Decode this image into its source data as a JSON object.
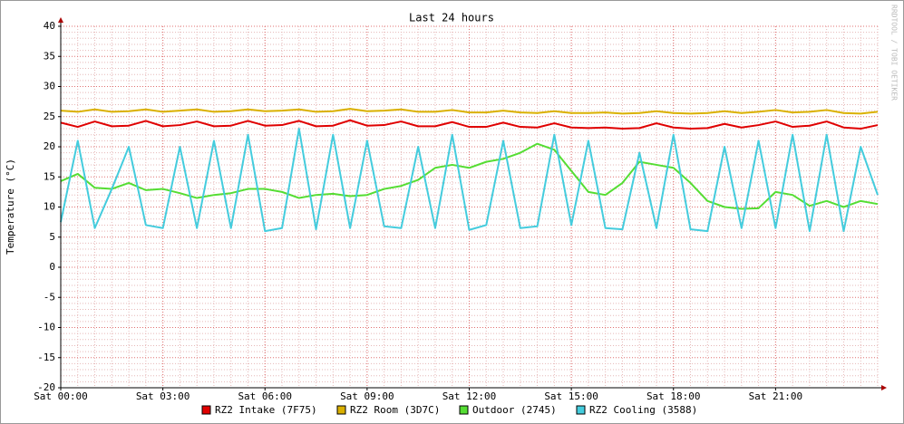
{
  "chart_data": {
    "type": "line",
    "title": "Last 24 hours",
    "ylabel": "Temperature (°C)",
    "watermark": "RRDTOOL / TOBI OETIKER",
    "x": [
      0,
      0.5,
      1,
      1.5,
      2,
      2.5,
      3,
      3.5,
      4,
      4.5,
      5,
      5.5,
      6,
      6.5,
      7,
      7.5,
      8,
      8.5,
      9,
      9.5,
      10,
      10.5,
      11,
      11.5,
      12,
      12.5,
      13,
      13.5,
      14,
      14.5,
      15,
      15.5,
      16,
      16.5,
      17,
      17.5,
      18,
      18.5,
      19,
      19.5,
      20,
      20.5,
      21,
      21.5,
      22,
      22.5,
      23,
      23.5,
      24
    ],
    "xlim": [
      0,
      24
    ],
    "xticks": [
      {
        "value": 0,
        "label": "Sat 00:00"
      },
      {
        "value": 3,
        "label": "Sat 03:00"
      },
      {
        "value": 6,
        "label": "Sat 06:00"
      },
      {
        "value": 9,
        "label": "Sat 09:00"
      },
      {
        "value": 12,
        "label": "Sat 12:00"
      },
      {
        "value": 15,
        "label": "Sat 15:00"
      },
      {
        "value": 18,
        "label": "Sat 18:00"
      },
      {
        "value": 21,
        "label": "Sat 21:00"
      }
    ],
    "ylim": [
      -20,
      40
    ],
    "yticks": [
      -20,
      -15,
      -10,
      -5,
      0,
      5,
      10,
      15,
      20,
      25,
      30,
      35,
      40
    ],
    "grid": true,
    "series": [
      {
        "name": "RZ2 Intake (7F75)",
        "color": "#e00000",
        "values": [
          24,
          23.3,
          24.2,
          23.4,
          23.5,
          24.3,
          23.4,
          23.6,
          24.2,
          23.4,
          23.5,
          24.3,
          23.5,
          23.6,
          24.3,
          23.4,
          23.5,
          24.4,
          23.5,
          23.6,
          24.2,
          23.4,
          23.4,
          24.1,
          23.3,
          23.3,
          24,
          23.3,
          23.2,
          23.9,
          23.2,
          23.1,
          23.2,
          23,
          23.1,
          23.9,
          23.2,
          23,
          23.1,
          23.8,
          23.2,
          23.6,
          24.2,
          23.3,
          23.5,
          24.2,
          23.2,
          23,
          23.6
        ]
      },
      {
        "name": "RZ2 Room (3D7C)",
        "color": "#dab000",
        "values": [
          26,
          25.8,
          26.2,
          25.8,
          25.9,
          26.2,
          25.8,
          26,
          26.2,
          25.8,
          25.9,
          26.2,
          25.9,
          26,
          26.2,
          25.8,
          25.9,
          26.3,
          25.9,
          26,
          26.2,
          25.8,
          25.8,
          26.1,
          25.7,
          25.7,
          26,
          25.7,
          25.6,
          25.9,
          25.6,
          25.6,
          25.7,
          25.5,
          25.6,
          25.9,
          25.6,
          25.5,
          25.6,
          25.9,
          25.6,
          25.8,
          26.1,
          25.7,
          25.8,
          26.1,
          25.6,
          25.5,
          25.8
        ]
      },
      {
        "name": "Outdoor (2745)",
        "color": "#55dd33",
        "values": [
          14.3,
          15.5,
          13.2,
          13,
          14,
          12.8,
          13,
          12.3,
          11.5,
          12,
          12.3,
          13,
          13,
          12.5,
          11.5,
          12,
          12.2,
          11.8,
          12,
          13,
          13.5,
          14.5,
          16.5,
          17,
          16.5,
          17.5,
          18,
          19,
          20.5,
          19.5,
          16,
          12.5,
          12,
          14,
          17.5,
          17,
          16.5,
          14,
          11,
          10,
          9.7,
          9.8,
          12.5,
          12,
          10.2,
          11,
          10,
          11,
          10.5
        ]
      },
      {
        "name": "RZ2 Cooling (3588)",
        "color": "#44ccdd",
        "values": [
          7.5,
          21,
          6.5,
          13,
          20,
          7,
          6.5,
          20,
          6.5,
          21,
          6.5,
          22,
          6,
          6.5,
          23,
          6.3,
          22,
          6.5,
          21,
          6.8,
          6.5,
          20,
          6.5,
          22,
          6.2,
          7,
          21,
          6.5,
          6.8,
          22,
          7,
          21,
          6.5,
          6.3,
          19,
          6.5,
          22,
          6.3,
          6,
          20,
          6.5,
          21,
          6.5,
          22,
          6,
          22,
          6,
          20,
          12
        ]
      }
    ]
  }
}
